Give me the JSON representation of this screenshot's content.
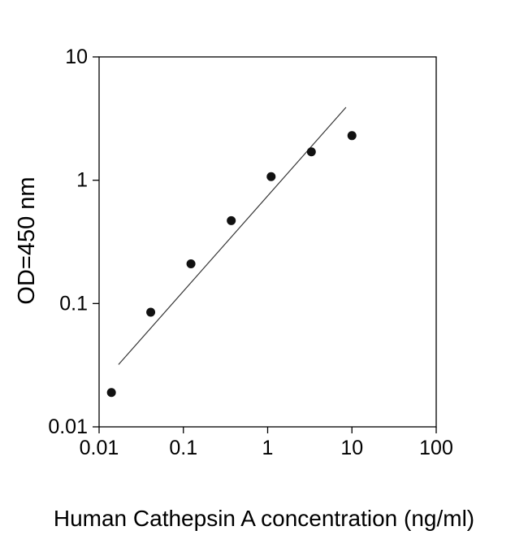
{
  "chart_data": {
    "type": "scatter",
    "title": "",
    "xlabel": "Human Cathepsin A concentration (ng/ml)",
    "ylabel": "OD=450 nm",
    "x_scale": "log",
    "y_scale": "log",
    "xlim": [
      0.01,
      100
    ],
    "ylim": [
      0.01,
      10
    ],
    "x_ticks": [
      "0.01",
      "0.1",
      "1",
      "10",
      "100"
    ],
    "y_ticks": [
      "0.01",
      "0.1",
      "1",
      "10"
    ],
    "grid": false,
    "legend": false,
    "frame_color": "#000000",
    "series": [
      {
        "name": "trend-line",
        "type": "line",
        "color": "#333333",
        "x": [
          0.017,
          8.5
        ],
        "y": [
          0.032,
          3.9
        ]
      },
      {
        "name": "standard-points",
        "type": "scatter",
        "marker": "circle",
        "color": "#111111",
        "x": [
          0.014,
          0.041,
          0.123,
          0.37,
          1.1,
          3.3,
          10
        ],
        "y": [
          0.019,
          0.085,
          0.21,
          0.47,
          1.07,
          1.7,
          2.3
        ]
      }
    ]
  }
}
